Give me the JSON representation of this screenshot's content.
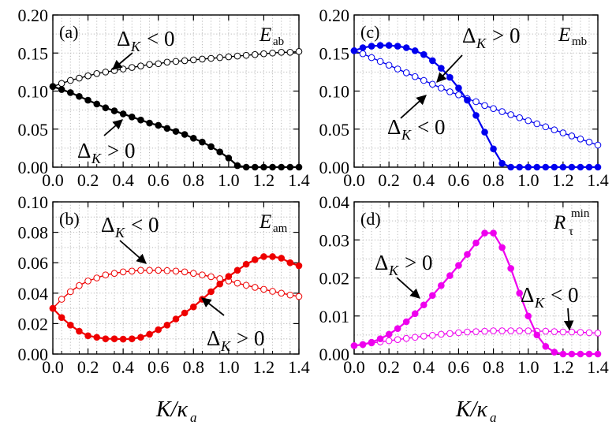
{
  "chart_data": [
    {
      "id": "a",
      "type": "line",
      "panel_label": "(a)",
      "metric": {
        "main": "E",
        "sub": "ab",
        "script": false
      },
      "xlim": [
        0,
        1.4
      ],
      "ylim": [
        0,
        0.2
      ],
      "xticks": [
        "0.0",
        "0.2",
        "0.4",
        "0.6",
        "0.8",
        "1.0",
        "1.2",
        "1.4"
      ],
      "yticks": [
        "0.00",
        "0.05",
        "0.10",
        "0.15",
        "0.20"
      ],
      "series": [
        {
          "sign": "negative",
          "color": "#000000",
          "marker": "open",
          "x": [
            0,
            0.05,
            0.1,
            0.15,
            0.2,
            0.25,
            0.3,
            0.35,
            0.4,
            0.45,
            0.5,
            0.55,
            0.6,
            0.65,
            0.7,
            0.75,
            0.8,
            0.85,
            0.9,
            0.95,
            1.0,
            1.05,
            1.1,
            1.15,
            1.2,
            1.25,
            1.3,
            1.35,
            1.4
          ],
          "y": [
            0.106,
            0.11,
            0.114,
            0.117,
            0.12,
            0.123,
            0.125,
            0.127,
            0.129,
            0.131,
            0.133,
            0.135,
            0.136,
            0.138,
            0.139,
            0.14,
            0.141,
            0.142,
            0.143,
            0.144,
            0.145,
            0.146,
            0.147,
            0.148,
            0.149,
            0.15,
            0.151,
            0.151,
            0.152
          ]
        },
        {
          "sign": "positive",
          "color": "#000000",
          "marker": "filled",
          "x": [
            0,
            0.05,
            0.1,
            0.15,
            0.2,
            0.25,
            0.3,
            0.35,
            0.4,
            0.45,
            0.5,
            0.55,
            0.6,
            0.65,
            0.7,
            0.75,
            0.8,
            0.85,
            0.9,
            0.95,
            1.0,
            1.05,
            1.1,
            1.15,
            1.2,
            1.25,
            1.3,
            1.35,
            1.4
          ],
          "y": [
            0.106,
            0.102,
            0.098,
            0.093,
            0.088,
            0.083,
            0.078,
            0.074,
            0.07,
            0.066,
            0.062,
            0.058,
            0.055,
            0.051,
            0.047,
            0.043,
            0.038,
            0.033,
            0.027,
            0.02,
            0.012,
            0.002,
            0.0,
            0.0,
            0.0,
            0.0,
            0.0,
            0.0,
            0.0
          ]
        }
      ],
      "annotations": [
        {
          "text": "Δ",
          "sub": "K",
          "rel": "< 0"
        },
        {
          "text": "Δ",
          "sub": "K",
          "rel": "> 0"
        }
      ]
    },
    {
      "id": "c",
      "type": "line",
      "panel_label": "(c)",
      "metric": {
        "main": "E",
        "sub": "mb",
        "script": false
      },
      "xlim": [
        0,
        1.4
      ],
      "ylim": [
        0,
        0.2
      ],
      "xticks": [
        "0.0",
        "0.2",
        "0.4",
        "0.6",
        "0.8",
        "1.0",
        "1.2",
        "1.4"
      ],
      "yticks": [
        "0.00",
        "0.05",
        "0.10",
        "0.15",
        "0.20"
      ],
      "series": [
        {
          "sign": "negative",
          "color": "#0000ee",
          "marker": "open",
          "x": [
            0,
            0.05,
            0.1,
            0.15,
            0.2,
            0.25,
            0.3,
            0.35,
            0.4,
            0.45,
            0.5,
            0.55,
            0.6,
            0.65,
            0.7,
            0.75,
            0.8,
            0.85,
            0.9,
            0.95,
            1.0,
            1.05,
            1.1,
            1.15,
            1.2,
            1.25,
            1.3,
            1.35,
            1.4
          ],
          "y": [
            0.153,
            0.149,
            0.144,
            0.139,
            0.134,
            0.129,
            0.124,
            0.119,
            0.114,
            0.109,
            0.104,
            0.099,
            0.095,
            0.09,
            0.086,
            0.081,
            0.077,
            0.073,
            0.069,
            0.065,
            0.061,
            0.057,
            0.053,
            0.049,
            0.045,
            0.041,
            0.037,
            0.033,
            0.029
          ]
        },
        {
          "sign": "positive",
          "color": "#0000ee",
          "marker": "filled",
          "x": [
            0,
            0.05,
            0.1,
            0.15,
            0.2,
            0.25,
            0.3,
            0.35,
            0.4,
            0.45,
            0.5,
            0.55,
            0.6,
            0.65,
            0.7,
            0.75,
            0.8,
            0.85,
            0.9,
            0.95,
            1.0,
            1.05,
            1.1,
            1.15,
            1.2,
            1.25,
            1.3,
            1.35,
            1.4
          ],
          "y": [
            0.153,
            0.157,
            0.159,
            0.16,
            0.16,
            0.159,
            0.157,
            0.153,
            0.148,
            0.14,
            0.13,
            0.118,
            0.104,
            0.088,
            0.068,
            0.046,
            0.024,
            0.005,
            0.0,
            0.0,
            0.0,
            0.0,
            0.0,
            0.0,
            0.0,
            0.0,
            0.0,
            0.0,
            0.0
          ]
        }
      ],
      "annotations": [
        {
          "text": "Δ",
          "sub": "K",
          "rel": "> 0"
        },
        {
          "text": "Δ",
          "sub": "K",
          "rel": "< 0"
        }
      ]
    },
    {
      "id": "b",
      "type": "line",
      "panel_label": "(b)",
      "metric": {
        "main": "E",
        "sub": "am",
        "script": false
      },
      "xlim": [
        0,
        1.4
      ],
      "ylim": [
        0,
        0.1
      ],
      "xticks": [
        "0.0",
        "0.2",
        "0.4",
        "0.6",
        "0.8",
        "1.0",
        "1.2",
        "1.4"
      ],
      "yticks": [
        "0.00",
        "0.02",
        "0.04",
        "0.06",
        "0.08",
        "0.10"
      ],
      "series": [
        {
          "sign": "negative",
          "color": "#ee0000",
          "marker": "open",
          "x": [
            0,
            0.05,
            0.1,
            0.15,
            0.2,
            0.25,
            0.3,
            0.35,
            0.4,
            0.45,
            0.5,
            0.55,
            0.6,
            0.65,
            0.7,
            0.75,
            0.8,
            0.85,
            0.9,
            0.95,
            1.0,
            1.05,
            1.1,
            1.15,
            1.2,
            1.25,
            1.3,
            1.35,
            1.4
          ],
          "y": [
            0.03,
            0.036,
            0.041,
            0.045,
            0.048,
            0.05,
            0.052,
            0.053,
            0.054,
            0.0545,
            0.055,
            0.055,
            0.055,
            0.0548,
            0.0545,
            0.054,
            0.053,
            0.052,
            0.0508,
            0.0495,
            0.048,
            0.0466,
            0.0452,
            0.0438,
            0.0425,
            0.0412,
            0.04,
            0.0388,
            0.0378
          ]
        },
        {
          "sign": "positive",
          "color": "#ee0000",
          "marker": "filled",
          "x": [
            0,
            0.05,
            0.1,
            0.15,
            0.2,
            0.25,
            0.3,
            0.35,
            0.4,
            0.45,
            0.5,
            0.55,
            0.6,
            0.65,
            0.7,
            0.75,
            0.8,
            0.85,
            0.9,
            0.95,
            1.0,
            1.05,
            1.1,
            1.15,
            1.2,
            1.25,
            1.3,
            1.35,
            1.4
          ],
          "y": [
            0.03,
            0.024,
            0.019,
            0.015,
            0.012,
            0.011,
            0.01,
            0.01,
            0.0098,
            0.01,
            0.011,
            0.013,
            0.016,
            0.019,
            0.023,
            0.027,
            0.031,
            0.036,
            0.041,
            0.046,
            0.051,
            0.055,
            0.059,
            0.062,
            0.064,
            0.064,
            0.063,
            0.06,
            0.058
          ]
        }
      ],
      "annotations": [
        {
          "text": "Δ",
          "sub": "K",
          "rel": "< 0"
        },
        {
          "text": "Δ",
          "sub": "K",
          "rel": "> 0"
        }
      ]
    },
    {
      "id": "d",
      "type": "line",
      "panel_label": "(d)",
      "metric": {
        "main": "R",
        "sub": "τ",
        "sup": "min",
        "script": true
      },
      "xlim": [
        0,
        1.4
      ],
      "ylim": [
        0,
        0.04
      ],
      "xticks": [
        "0.0",
        "0.2",
        "0.4",
        "0.6",
        "0.8",
        "1.0",
        "1.2",
        "1.4"
      ],
      "yticks": [
        "0.00",
        "0.01",
        "0.02",
        "0.03",
        "0.04"
      ],
      "series": [
        {
          "sign": "negative",
          "color": "#ee00ee",
          "marker": "open",
          "x": [
            0,
            0.05,
            0.1,
            0.15,
            0.2,
            0.25,
            0.3,
            0.35,
            0.4,
            0.45,
            0.5,
            0.55,
            0.6,
            0.65,
            0.7,
            0.75,
            0.8,
            0.85,
            0.9,
            0.95,
            1.0,
            1.05,
            1.1,
            1.15,
            1.2,
            1.25,
            1.3,
            1.35,
            1.4
          ],
          "y": [
            0.0022,
            0.0025,
            0.0029,
            0.0032,
            0.0035,
            0.0038,
            0.0041,
            0.0044,
            0.0047,
            0.0049,
            0.0052,
            0.0054,
            0.0056,
            0.0058,
            0.0059,
            0.006,
            0.0061,
            0.0061,
            0.0061,
            0.0061,
            0.0061,
            0.006,
            0.006,
            0.0059,
            0.0058,
            0.0058,
            0.0057,
            0.0056,
            0.0055
          ]
        },
        {
          "sign": "positive",
          "color": "#ee00ee",
          "marker": "filled",
          "x": [
            0,
            0.05,
            0.1,
            0.15,
            0.2,
            0.25,
            0.3,
            0.35,
            0.4,
            0.45,
            0.5,
            0.55,
            0.6,
            0.65,
            0.7,
            0.75,
            0.8,
            0.85,
            0.9,
            0.95,
            1.0,
            1.05,
            1.1,
            1.15,
            1.2,
            1.25,
            1.3,
            1.35,
            1.4
          ],
          "y": [
            0.0022,
            0.0025,
            0.0031,
            0.004,
            0.0052,
            0.0067,
            0.0085,
            0.0106,
            0.0129,
            0.0154,
            0.018,
            0.0206,
            0.0233,
            0.0262,
            0.0292,
            0.0318,
            0.0318,
            0.028,
            0.0225,
            0.016,
            0.01,
            0.005,
            0.002,
            0.0005,
            0.0,
            0.0,
            0.0,
            0.0,
            0.0
          ]
        }
      ],
      "annotations": [
        {
          "text": "Δ",
          "sub": "K",
          "rel": "> 0"
        },
        {
          "text": "Δ",
          "sub": "K",
          "rel": "< 0"
        }
      ]
    }
  ],
  "xaxis_title": {
    "main": "K/κ",
    "sub": "a"
  }
}
